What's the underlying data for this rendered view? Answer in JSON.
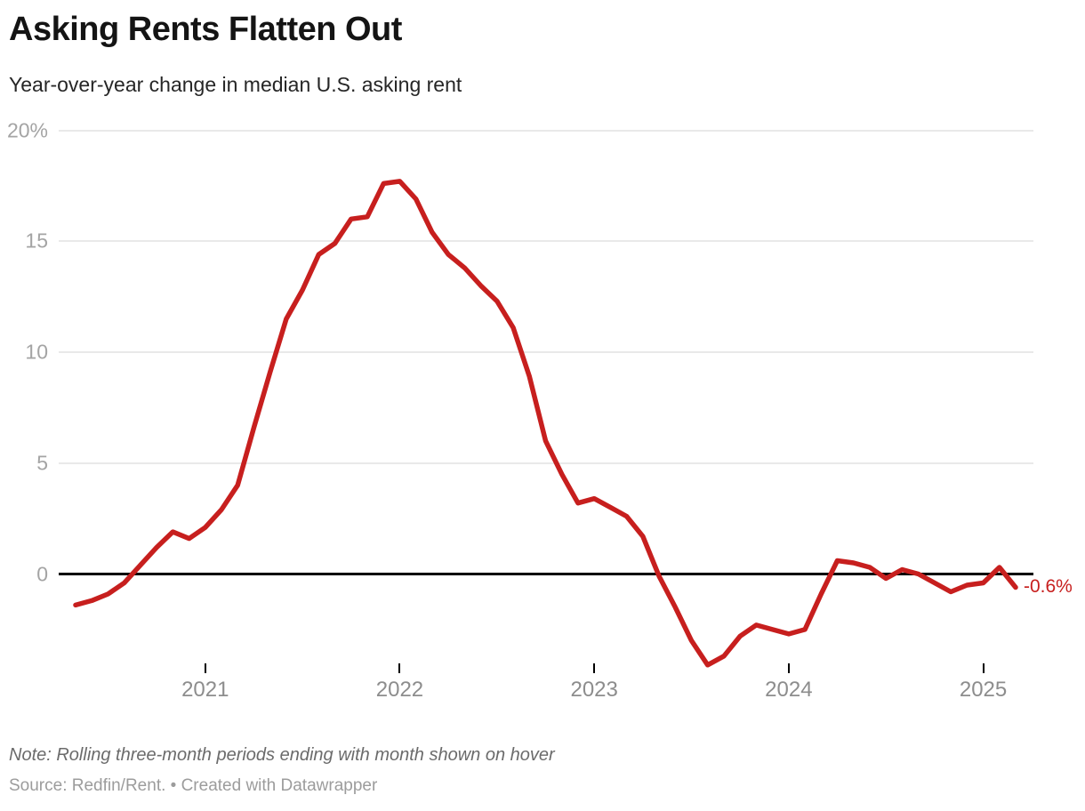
{
  "header": {
    "title": "Asking Rents Flatten Out",
    "subtitle": "Year-over-year change in median U.S. asking rent"
  },
  "footer": {
    "note": "Note: Rolling three-month periods ending with month shown on hover",
    "source": "Source: Redfin/Rent. • Created with Datawrapper"
  },
  "chart_data": {
    "type": "line",
    "title": "Asking Rents Flatten Out",
    "subtitle": "Year-over-year change in median U.S. asking rent",
    "series_name": "Year-over-year change in median U.S. asking rent (rolling three-month periods)",
    "unit": "%",
    "x": [
      "2020-05",
      "2020-06",
      "2020-07",
      "2020-08",
      "2020-09",
      "2020-10",
      "2020-11",
      "2020-12",
      "2021-01",
      "2021-02",
      "2021-03",
      "2021-04",
      "2021-05",
      "2021-06",
      "2021-07",
      "2021-08",
      "2021-09",
      "2021-10",
      "2021-11",
      "2021-12",
      "2022-01",
      "2022-02",
      "2022-03",
      "2022-04",
      "2022-05",
      "2022-06",
      "2022-07",
      "2022-08",
      "2022-09",
      "2022-10",
      "2022-11",
      "2022-12",
      "2023-01",
      "2023-02",
      "2023-03",
      "2023-04",
      "2023-05",
      "2023-06",
      "2023-07",
      "2023-08",
      "2023-09",
      "2023-10",
      "2023-11",
      "2023-12",
      "2024-01",
      "2024-02",
      "2024-03",
      "2024-04",
      "2024-05",
      "2024-06",
      "2024-07",
      "2024-08",
      "2024-09",
      "2024-10",
      "2024-11",
      "2024-12",
      "2025-01",
      "2025-02",
      "2025-03"
    ],
    "values": [
      -1.4,
      -1.2,
      -0.9,
      -0.4,
      0.4,
      1.2,
      1.9,
      1.6,
      2.1,
      2.9,
      4.0,
      6.6,
      9.1,
      11.5,
      12.8,
      14.4,
      14.9,
      16.0,
      16.1,
      17.6,
      17.7,
      16.9,
      15.4,
      14.4,
      13.8,
      13.0,
      12.3,
      11.1,
      8.9,
      6.0,
      4.5,
      3.2,
      3.4,
      3.0,
      2.6,
      1.7,
      -0.1,
      -1.5,
      -3.0,
      -4.1,
      -3.7,
      -2.8,
      -2.3,
      -2.5,
      -2.7,
      -2.5,
      -0.9,
      0.6,
      0.5,
      0.3,
      -0.2,
      0.2,
      0.0,
      -0.4,
      -0.8,
      -0.5,
      -0.4,
      0.3,
      -0.6
    ],
    "ylim": [
      -5.5,
      21
    ],
    "y_ticks": [
      {
        "value": 20,
        "label": "20%"
      },
      {
        "value": 15,
        "label": "15"
      },
      {
        "value": 10,
        "label": "10"
      },
      {
        "value": 5,
        "label": "5"
      },
      {
        "value": 0,
        "label": "0"
      }
    ],
    "x_ticks": [
      {
        "month": "2021-01",
        "label": "2021"
      },
      {
        "month": "2022-01",
        "label": "2022"
      },
      {
        "month": "2023-01",
        "label": "2023"
      },
      {
        "month": "2024-01",
        "label": "2024"
      },
      {
        "month": "2025-01",
        "label": "2025"
      }
    ],
    "grid": "horizontal",
    "legend": "none",
    "zero_baseline": true,
    "line_color": "#c71f1e",
    "end_label": "-0.6%",
    "end_label_color": "#c71f1e"
  }
}
